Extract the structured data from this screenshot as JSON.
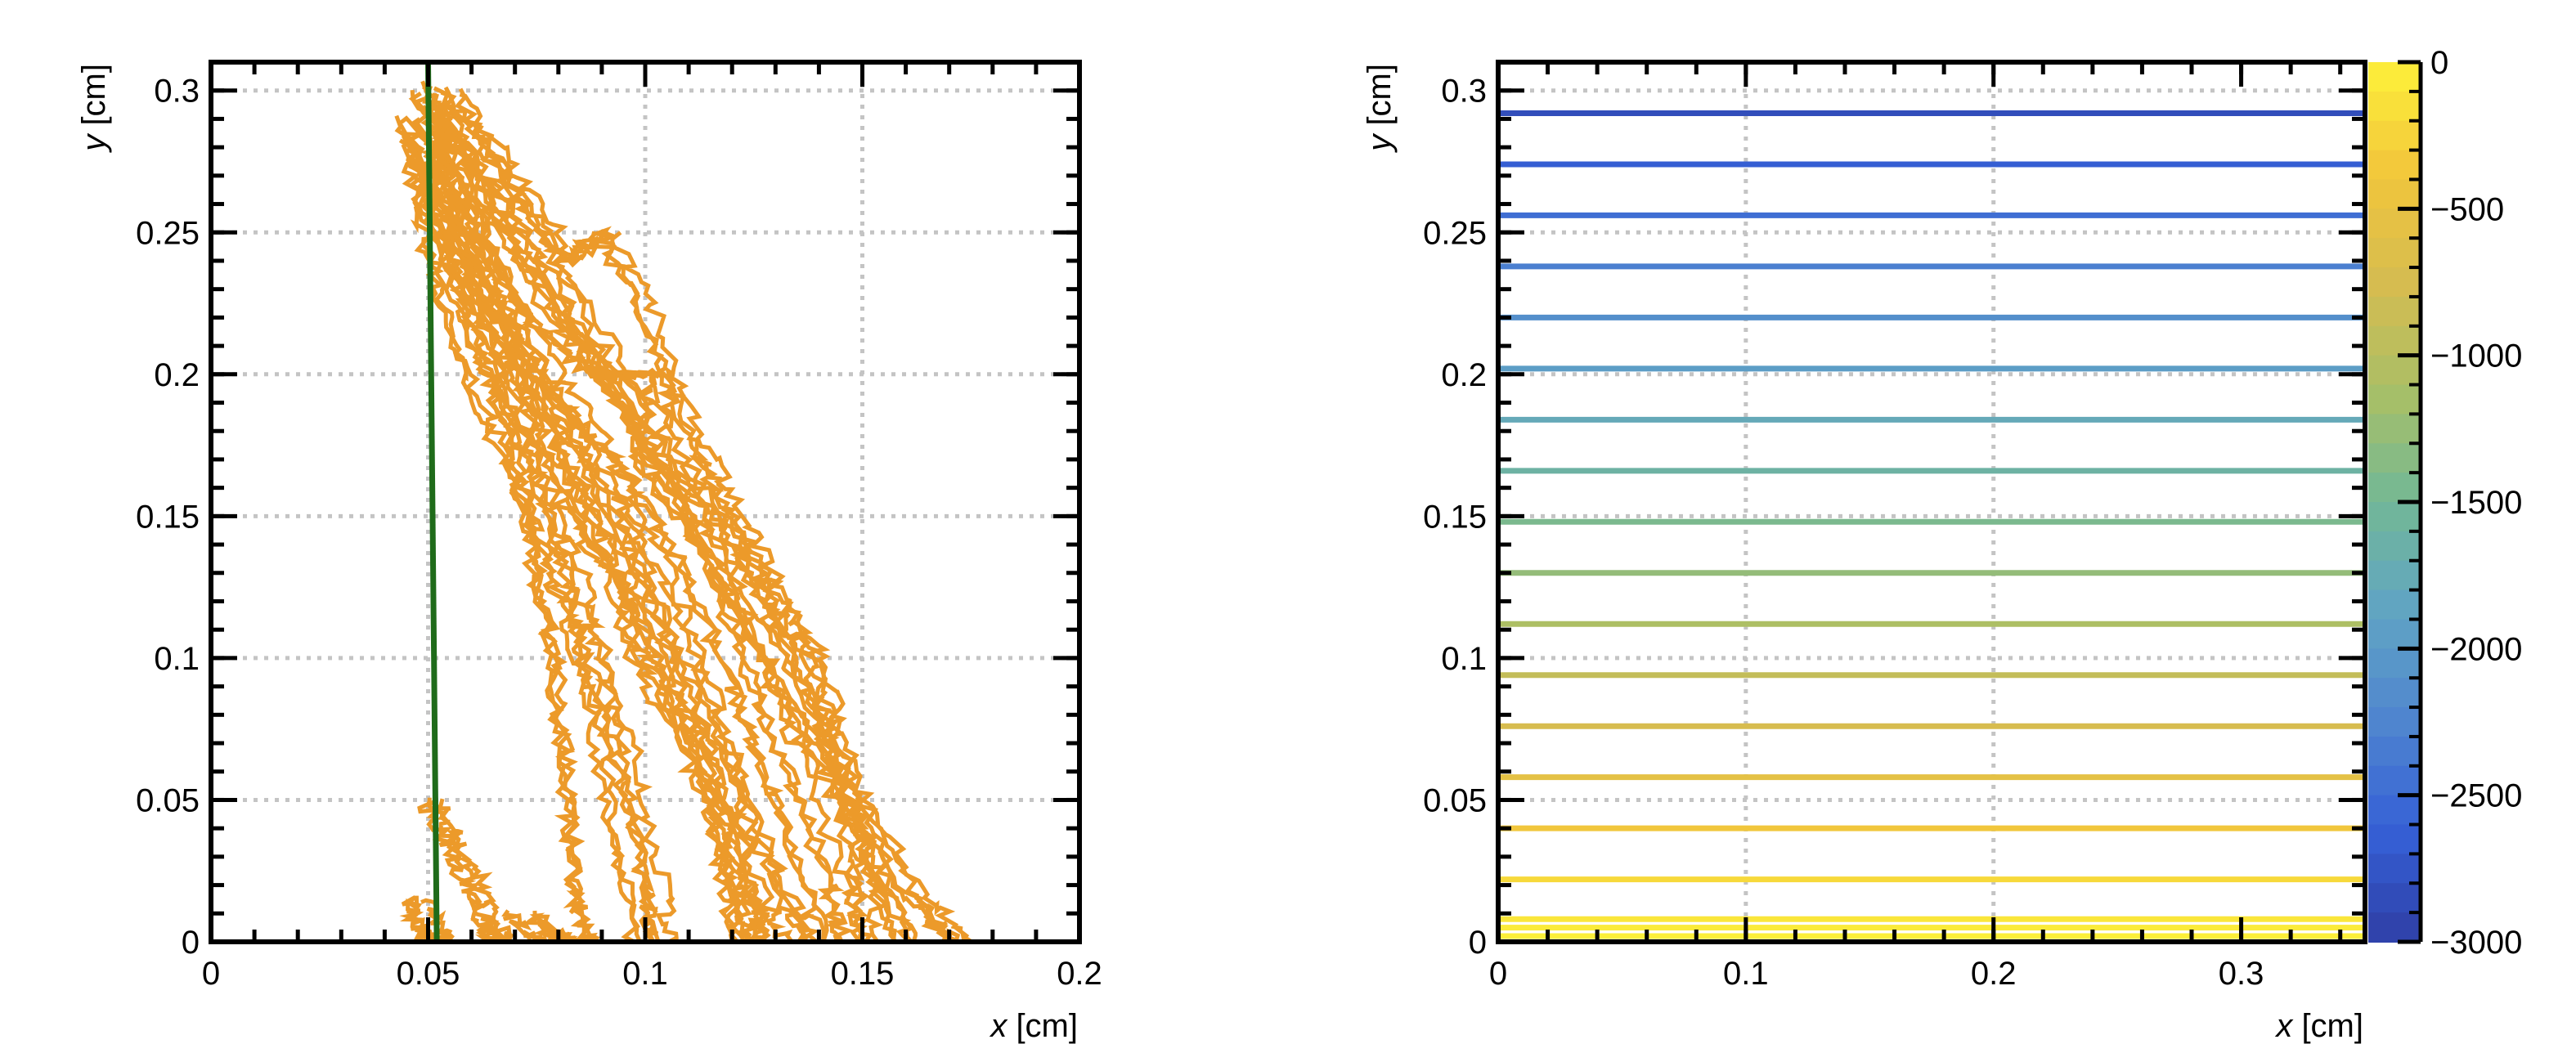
{
  "chart_data": [
    {
      "type": "line",
      "name": "drift-paths",
      "xlabel_var": "x",
      "xlabel_unit": " [cm]",
      "ylabel_var": "y",
      "ylabel_unit": " [cm]",
      "xlim": [
        0,
        0.2
      ],
      "ylim": [
        0,
        0.31
      ],
      "xticks": [
        0,
        0.05,
        0.1,
        0.15,
        0.2
      ],
      "xtick_labels": [
        "0",
        "0.05",
        "0.1",
        "0.15",
        "0.2"
      ],
      "yticks": [
        0,
        0.05,
        0.1,
        0.15,
        0.2,
        0.25,
        0.3
      ],
      "ytick_labels": [
        "0",
        "0.05",
        "0.1",
        "0.15",
        "0.2",
        "0.25",
        "0.3"
      ],
      "grid": true,
      "series": [
        {
          "color": "#ec9a2a",
          "style": "jagged-paths",
          "paths": [
            [
              [
                0.052,
                0.298
              ],
              [
                0.058,
                0.26
              ],
              [
                0.068,
                0.22
              ],
              [
                0.08,
                0.18
              ],
              [
                0.092,
                0.14
              ],
              [
                0.104,
                0.1
              ],
              [
                0.115,
                0.06
              ],
              [
                0.125,
                0.02
              ],
              [
                0.128,
                0.0
              ]
            ],
            [
              [
                0.05,
                0.295
              ],
              [
                0.06,
                0.25
              ],
              [
                0.075,
                0.2
              ],
              [
                0.09,
                0.15
              ],
              [
                0.105,
                0.1
              ],
              [
                0.12,
                0.05
              ],
              [
                0.132,
                0.01
              ],
              [
                0.135,
                0.0
              ]
            ],
            [
              [
                0.048,
                0.29
              ],
              [
                0.055,
                0.26
              ],
              [
                0.065,
                0.23
              ],
              [
                0.078,
                0.2
              ],
              [
                0.09,
                0.17
              ],
              [
                0.1,
                0.14
              ],
              [
                0.11,
                0.1
              ],
              [
                0.118,
                0.06
              ],
              [
                0.122,
                0.02
              ],
              [
                0.124,
                0.0
              ]
            ],
            [
              [
                0.052,
                0.302
              ],
              [
                0.065,
                0.27
              ],
              [
                0.08,
                0.23
              ],
              [
                0.098,
                0.19
              ],
              [
                0.113,
                0.15
              ],
              [
                0.126,
                0.11
              ],
              [
                0.14,
                0.07
              ],
              [
                0.155,
                0.03
              ],
              [
                0.165,
                0.0
              ]
            ],
            [
              [
                0.049,
                0.285
              ],
              [
                0.058,
                0.24
              ],
              [
                0.068,
                0.21
              ],
              [
                0.078,
                0.17
              ],
              [
                0.085,
                0.13
              ],
              [
                0.09,
                0.1
              ],
              [
                0.098,
                0.06
              ],
              [
                0.104,
                0.02
              ],
              [
                0.105,
                0.0
              ]
            ],
            [
              [
                0.047,
                0.29
              ],
              [
                0.05,
                0.26
              ],
              [
                0.054,
                0.23
              ],
              [
                0.06,
                0.2
              ],
              [
                0.07,
                0.17
              ],
              [
                0.078,
                0.14
              ],
              [
                0.085,
                0.11
              ],
              [
                0.09,
                0.08
              ],
              [
                0.095,
                0.04
              ],
              [
                0.1,
                0.0
              ]
            ],
            [
              [
                0.05,
                0.3
              ],
              [
                0.062,
                0.26
              ],
              [
                0.075,
                0.22
              ],
              [
                0.09,
                0.2
              ],
              [
                0.105,
                0.2
              ],
              [
                0.1,
                0.17
              ],
              [
                0.115,
                0.14
              ],
              [
                0.125,
                0.1
              ],
              [
                0.135,
                0.06
              ],
              [
                0.145,
                0.02
              ],
              [
                0.148,
                0.0
              ]
            ],
            [
              [
                0.055,
                0.3
              ],
              [
                0.068,
                0.27
              ],
              [
                0.082,
                0.24
              ],
              [
                0.09,
                0.25
              ],
              [
                0.1,
                0.22
              ],
              [
                0.11,
                0.18
              ],
              [
                0.12,
                0.15
              ],
              [
                0.13,
                0.12
              ],
              [
                0.14,
                0.08
              ],
              [
                0.15,
                0.04
              ],
              [
                0.158,
                0.0
              ]
            ],
            [
              [
                0.05,
                0.28
              ],
              [
                0.062,
                0.24
              ],
              [
                0.072,
                0.2
              ],
              [
                0.082,
                0.16
              ],
              [
                0.095,
                0.13
              ],
              [
                0.1,
                0.1
              ],
              [
                0.112,
                0.07
              ],
              [
                0.12,
                0.04
              ],
              [
                0.125,
                0.0
              ]
            ],
            [
              [
                0.053,
                0.296
              ],
              [
                0.07,
                0.26
              ],
              [
                0.085,
                0.22
              ],
              [
                0.1,
                0.18
              ],
              [
                0.118,
                0.15
              ],
              [
                0.13,
                0.12
              ],
              [
                0.14,
                0.1
              ],
              [
                0.145,
                0.07
              ],
              [
                0.15,
                0.03
              ],
              [
                0.152,
                0.0
              ]
            ],
            [
              [
                0.049,
                0.27
              ],
              [
                0.06,
                0.22
              ],
              [
                0.07,
                0.18
              ],
              [
                0.075,
                0.14
              ],
              [
                0.08,
                0.1
              ],
              [
                0.083,
                0.06
              ],
              [
                0.085,
                0.02
              ],
              [
                0.088,
                0.0
              ]
            ],
            [
              [
                0.051,
                0.292
              ],
              [
                0.066,
                0.255
              ],
              [
                0.083,
                0.215
              ],
              [
                0.1,
                0.175
              ],
              [
                0.116,
                0.135
              ],
              [
                0.13,
                0.095
              ],
              [
                0.145,
                0.055
              ],
              [
                0.162,
                0.015
              ],
              [
                0.172,
                0.0
              ]
            ],
            [
              [
                0.048,
                0.283
              ],
              [
                0.056,
                0.25
              ],
              [
                0.066,
                0.215
              ],
              [
                0.08,
                0.185
              ],
              [
                0.095,
                0.16
              ],
              [
                0.108,
                0.125
              ],
              [
                0.118,
                0.085
              ],
              [
                0.128,
                0.045
              ],
              [
                0.138,
                0.0
              ]
            ],
            [
              [
                0.05,
                0.05
              ],
              [
                0.055,
                0.035
              ],
              [
                0.06,
                0.02
              ],
              [
                0.064,
                0.005
              ],
              [
                0.066,
                0.0
              ]
            ],
            [
              [
                0.048,
                0.015
              ],
              [
                0.05,
                0.005
              ],
              [
                0.053,
                0.0
              ]
            ],
            [
              [
                0.072,
                0.01
              ],
              [
                0.077,
                0.003
              ],
              [
                0.08,
                0.0
              ],
              [
                0.085,
                0.0
              ]
            ]
          ]
        },
        {
          "color": "#1f6b1a",
          "style": "line",
          "points": [
            [
              0.05,
              0.31
            ],
            [
              0.052,
              0.0
            ]
          ]
        }
      ]
    },
    {
      "type": "heatmap",
      "name": "potential-lines",
      "xlabel_var": "x",
      "xlabel_unit": " [cm]",
      "ylabel_var": "y",
      "ylabel_unit": " [cm]",
      "xlim": [
        0,
        0.35
      ],
      "ylim": [
        0,
        0.31
      ],
      "xticks": [
        0,
        0.1,
        0.2,
        0.3
      ],
      "xtick_labels": [
        "0",
        "0.1",
        "0.2",
        "0.3"
      ],
      "yticks": [
        0,
        0.05,
        0.1,
        0.15,
        0.2,
        0.25,
        0.3
      ],
      "ytick_labels": [
        "0",
        "0.05",
        "0.1",
        "0.15",
        "0.2",
        "0.25",
        "0.3"
      ],
      "grid": true,
      "contour_y": [
        0.002,
        0.005,
        0.008,
        0.022,
        0.04,
        0.058,
        0.076,
        0.094,
        0.112,
        0.13,
        0.148,
        0.166,
        0.184,
        0.202,
        0.22,
        0.238,
        0.256,
        0.274,
        0.292
      ],
      "contour_values": [
        -20,
        -55,
        -95,
        -210,
        -390,
        -560,
        -740,
        -910,
        -1090,
        -1270,
        -1440,
        -1610,
        -1780,
        -1960,
        -2130,
        -2310,
        -2480,
        -2650,
        -2830
      ],
      "colorbar": {
        "range": [
          -3000,
          0
        ],
        "ticks": [
          0,
          -500,
          -1000,
          -1500,
          -2000,
          -2500,
          -3000
        ],
        "tick_labels": [
          "0",
          "−500",
          "−1000",
          "−1500",
          "−2000",
          "−2500",
          "−3000"
        ],
        "stops": [
          "#2f3fa5",
          "#3560d6",
          "#4f85cf",
          "#60a4c4",
          "#72b896",
          "#a9bf66",
          "#d6bc50",
          "#f2c63b",
          "#fdf13a"
        ]
      }
    }
  ]
}
